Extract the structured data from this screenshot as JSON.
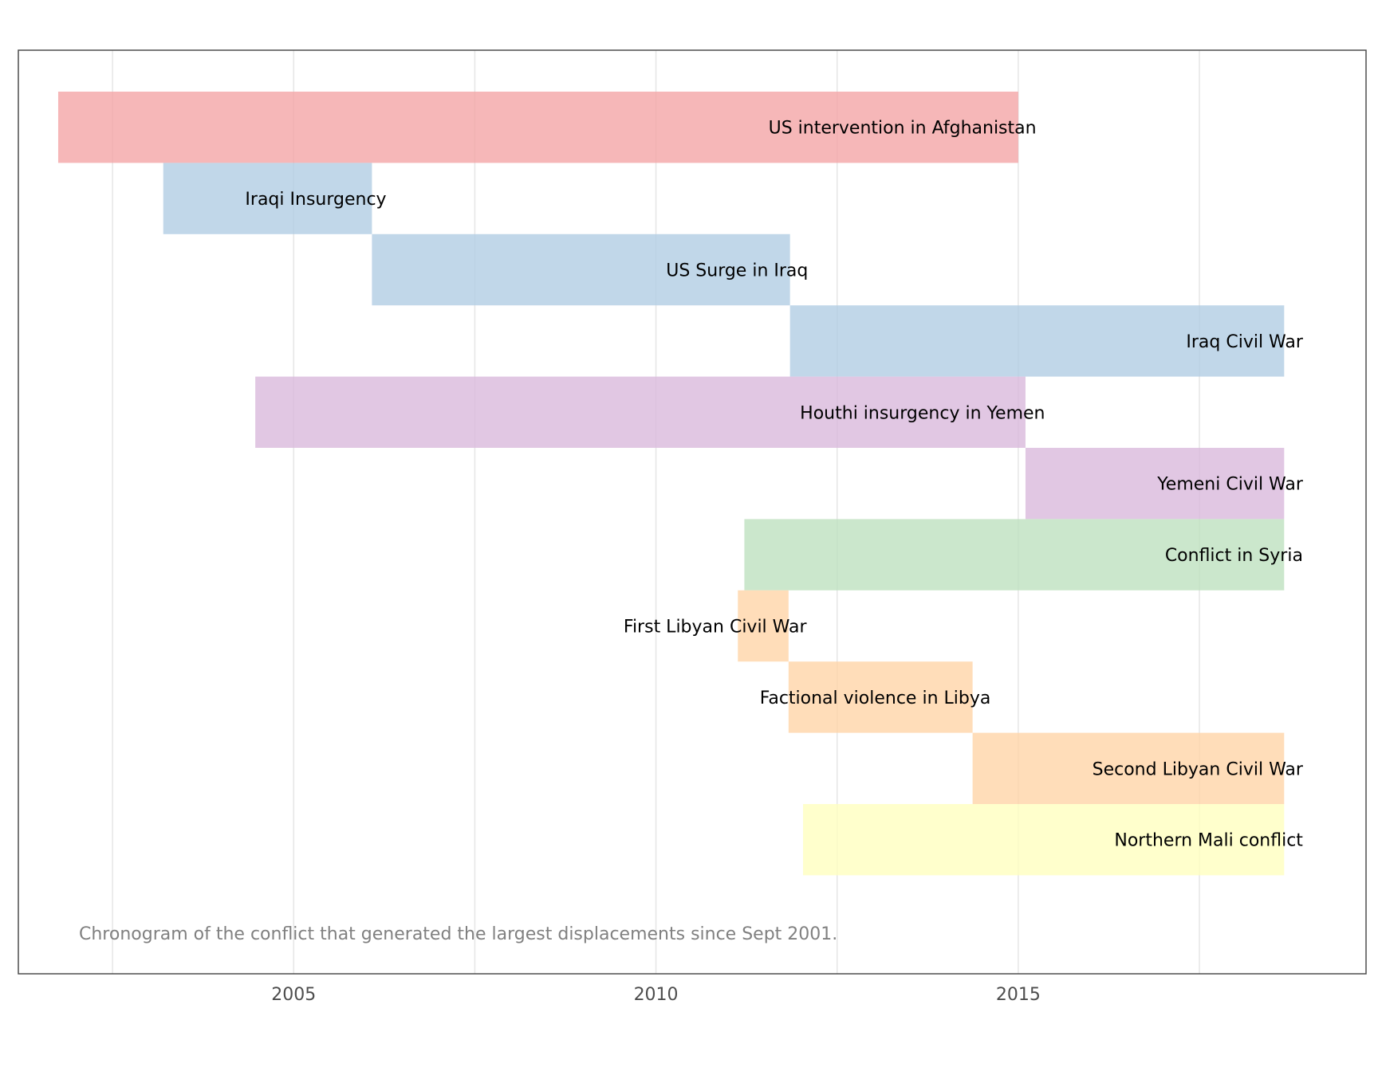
{
  "chart_data": {
    "type": "timeline",
    "title": "",
    "xlabel": "",
    "ylabel": "",
    "xlim": [
      2001.2,
      2019.8
    ],
    "x_ticks": [
      2005,
      2010,
      2015
    ],
    "x_tick_labels": [
      "2005",
      "2010",
      "2015"
    ],
    "grid": true,
    "caption": "Chronogram of the conflict that generated the largest displacements since Sept 2001.",
    "bars": [
      {
        "label": "US intervention in Afghanistan",
        "start": 2001.75,
        "end": 2015.0,
        "color": "#F4A5A6",
        "label_anchor": "right",
        "label_x": 2015.25
      },
      {
        "label": "Iraqi Insurgency",
        "start": 2003.2,
        "end": 2006.08,
        "color": "#B2CDE3",
        "label_anchor": "right",
        "label_x": 2006.28
      },
      {
        "label": "US Surge in Iraq",
        "start": 2006.08,
        "end": 2011.85,
        "color": "#B2CDE3",
        "label_anchor": "right",
        "label_x": 2012.1
      },
      {
        "label": "Iraq Civil War",
        "start": 2011.85,
        "end": 2018.67,
        "color": "#B2CDE3",
        "label_anchor": "right",
        "label_x": 2018.93
      },
      {
        "label": "Houthi insurgency in Yemen",
        "start": 2004.47,
        "end": 2015.1,
        "color": "#D9B9DC",
        "label_anchor": "right",
        "label_x": 2015.37
      },
      {
        "label": "Yemeni Civil War",
        "start": 2015.1,
        "end": 2018.67,
        "color": "#D9B9DC",
        "label_anchor": "right",
        "label_x": 2018.93
      },
      {
        "label": "Conflict in Syria",
        "start": 2011.22,
        "end": 2018.67,
        "color": "#BEE1BF",
        "label_anchor": "right",
        "label_x": 2018.93
      },
      {
        "label": "First Libyan Civil War",
        "start": 2011.13,
        "end": 2011.83,
        "color": "#FFD4A8",
        "label_anchor": "right",
        "label_x": 2012.08
      },
      {
        "label": "Factional violence in Libya",
        "start": 2011.83,
        "end": 2014.37,
        "color": "#FFD4A8",
        "label_anchor": "right",
        "label_x": 2014.62
      },
      {
        "label": "Second Libyan Civil War",
        "start": 2014.37,
        "end": 2018.67,
        "color": "#FFD4A8",
        "label_anchor": "right",
        "label_x": 2018.93
      },
      {
        "label": "Northern Mali conflict",
        "start": 2012.03,
        "end": 2018.67,
        "color": "#FFFFBF",
        "label_anchor": "right",
        "label_x": 2018.93
      }
    ]
  }
}
